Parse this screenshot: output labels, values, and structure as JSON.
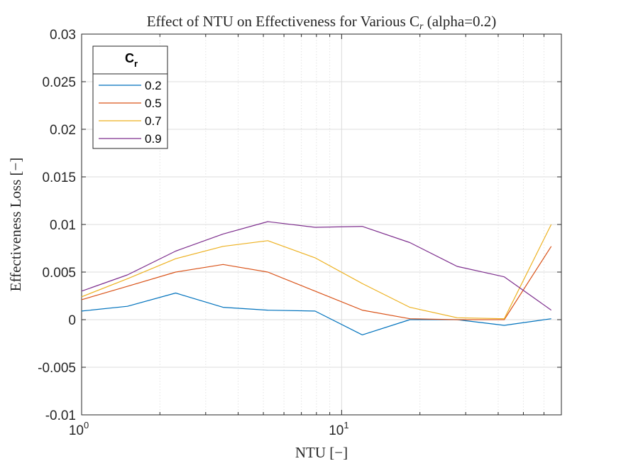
{
  "chart_data": {
    "type": "line",
    "title_main": "Effect of NTU on Effectiveness for Various C",
    "title_sub": "r",
    "title_tail": " (alpha=0.2)",
    "xlabel": "NTU [−]",
    "ylabel": "Effectiveness Loss [−]",
    "xscale": "log",
    "xlim": [
      1,
      70
    ],
    "ylim": [
      -0.01,
      0.03
    ],
    "grid": true,
    "y_ticks": [
      -0.01,
      -0.005,
      0,
      0.005,
      0.01,
      0.015,
      0.02,
      0.025,
      0.03
    ],
    "y_tick_labels": [
      "-0.01",
      "-0.005",
      "0",
      "0.005",
      "0.01",
      "0.015",
      "0.02",
      "0.025",
      "0.03"
    ],
    "x_tick_labels": [
      {
        "base": "10",
        "exp": "0"
      },
      {
        "base": "10",
        "exp": "1"
      }
    ],
    "legend": {
      "title_main": "C",
      "title_sub": "r",
      "placement": "top-left"
    },
    "x": [
      1.0,
      1.5,
      2.3,
      3.5,
      5.2,
      7.9,
      12,
      18.3,
      27.8,
      42.2,
      64
    ],
    "series": [
      {
        "name": "0.2",
        "color": "#0072BD",
        "values": [
          0.0009,
          0.0014,
          0.0028,
          0.0013,
          0.001,
          0.0009,
          -0.0016,
          0.0,
          0.0,
          -0.0006,
          0.0001
        ]
      },
      {
        "name": "0.5",
        "color": "#D95319",
        "values": [
          0.0021,
          0.0035,
          0.005,
          0.0058,
          0.005,
          0.003,
          0.001,
          0.0001,
          0.0,
          0.0,
          0.0077
        ]
      },
      {
        "name": "0.7",
        "color": "#EDB120",
        "values": [
          0.0024,
          0.0043,
          0.0064,
          0.0077,
          0.0083,
          0.0065,
          0.0038,
          0.0013,
          0.0002,
          0.0001,
          0.01
        ]
      },
      {
        "name": "0.9",
        "color": "#7E2F8E",
        "values": [
          0.003,
          0.0047,
          0.0072,
          0.009,
          0.0103,
          0.0097,
          0.0098,
          0.0081,
          0.0056,
          0.0045,
          0.001
        ]
      }
    ]
  }
}
